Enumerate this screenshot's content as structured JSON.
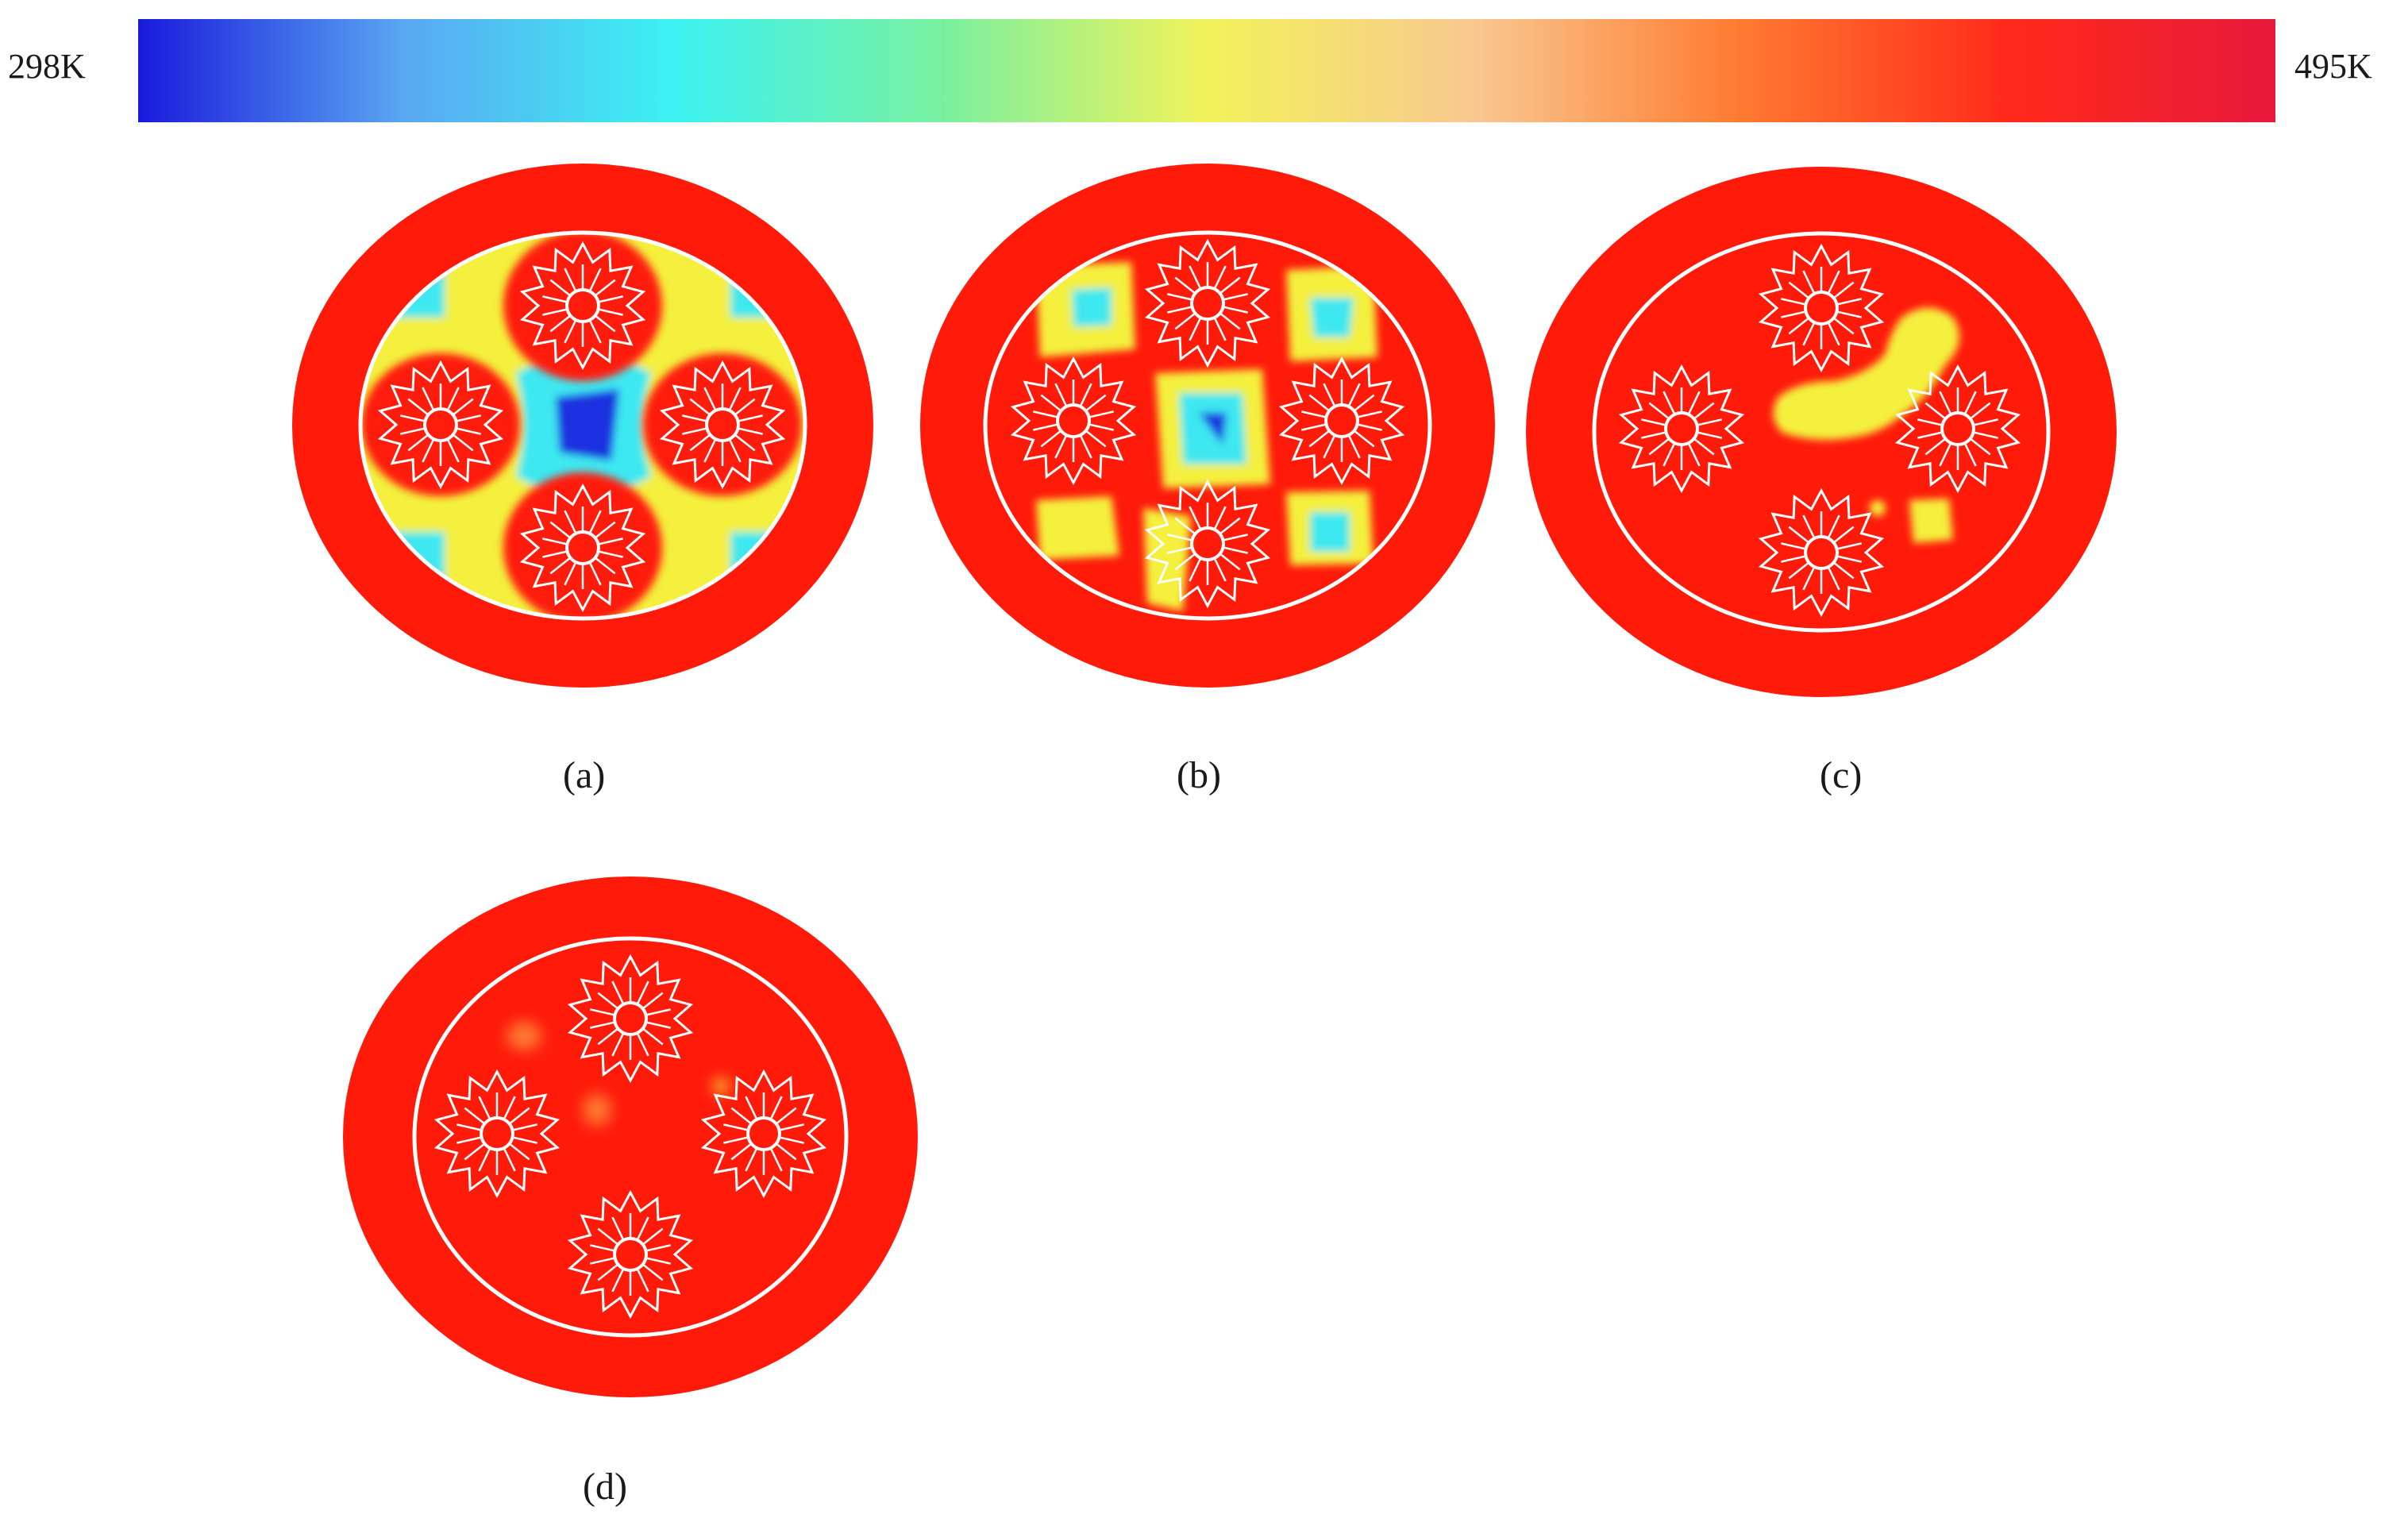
{
  "colorbar": {
    "min_label": "298K",
    "max_label": "495K",
    "gradient": [
      "#1a1adc",
      "#5aa8f2",
      "#3cf2f2",
      "#78f0a0",
      "#f2f25a",
      "#f8c890",
      "#ff7a30",
      "#ff2a1a",
      "#e8193c"
    ]
  },
  "panels": [
    {
      "id": "a",
      "label": "(a)",
      "hot_color": "#ff1a0a",
      "ring_color": "#ffffff"
    },
    {
      "id": "b",
      "label": "(b)",
      "hot_color": "#ff1a0a",
      "ring_color": "#ffffff"
    },
    {
      "id": "c",
      "label": "(c)",
      "hot_color": "#ff1a0a",
      "ring_color": "#ffffff"
    },
    {
      "id": "d",
      "label": "(d)",
      "hot_color": "#ff1a0a",
      "ring_color": "#ffffff"
    }
  ],
  "palette": {
    "cold": "#0a14e6",
    "cool": "#3ce8f0",
    "warm": "#f4f03c",
    "hot": "#ff1a0a",
    "white": "#ffffff"
  }
}
